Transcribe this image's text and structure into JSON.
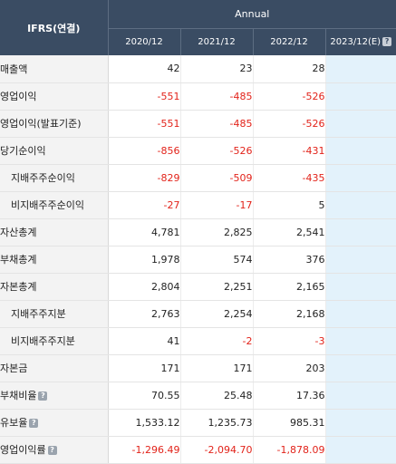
{
  "header": {
    "label": "IFRS(연결)",
    "group": "Annual",
    "years": [
      "2020/12",
      "2021/12",
      "2022/12",
      "2023/12(E)"
    ]
  },
  "rows": [
    {
      "label": "매출액",
      "indent": false,
      "help": false,
      "values": [
        "42",
        "23",
        "28",
        ""
      ]
    },
    {
      "label": "영업이익",
      "indent": false,
      "help": false,
      "values": [
        "-551",
        "-485",
        "-526",
        ""
      ]
    },
    {
      "label": "영업이익(발표기준)",
      "indent": false,
      "help": false,
      "values": [
        "-551",
        "-485",
        "-526",
        ""
      ]
    },
    {
      "label": "당기순이익",
      "indent": false,
      "help": false,
      "values": [
        "-856",
        "-526",
        "-431",
        ""
      ]
    },
    {
      "label": "지배주주순이익",
      "indent": true,
      "help": false,
      "values": [
        "-829",
        "-509",
        "-435",
        ""
      ]
    },
    {
      "label": "비지배주주순이익",
      "indent": true,
      "help": false,
      "values": [
        "-27",
        "-17",
        "5",
        ""
      ]
    },
    {
      "label": "자산총계",
      "indent": false,
      "help": false,
      "values": [
        "4,781",
        "2,825",
        "2,541",
        ""
      ]
    },
    {
      "label": "부채총계",
      "indent": false,
      "help": false,
      "values": [
        "1,978",
        "574",
        "376",
        ""
      ]
    },
    {
      "label": "자본총계",
      "indent": false,
      "help": false,
      "values": [
        "2,804",
        "2,251",
        "2,165",
        ""
      ]
    },
    {
      "label": "지배주주지분",
      "indent": true,
      "help": false,
      "values": [
        "2,763",
        "2,254",
        "2,168",
        ""
      ]
    },
    {
      "label": "비지배주주지분",
      "indent": true,
      "help": false,
      "values": [
        "41",
        "-2",
        "-3",
        ""
      ]
    },
    {
      "label": "자본금",
      "indent": false,
      "help": false,
      "values": [
        "171",
        "171",
        "203",
        ""
      ]
    },
    {
      "label": "부채비율",
      "indent": false,
      "help": true,
      "values": [
        "70.55",
        "25.48",
        "17.36",
        ""
      ]
    },
    {
      "label": "유보율",
      "indent": false,
      "help": true,
      "values": [
        "1,533.12",
        "1,235.73",
        "985.31",
        ""
      ]
    },
    {
      "label": "영업이익률",
      "indent": false,
      "help": true,
      "values": [
        "-1,296.49",
        "-2,094.70",
        "-1,878.09",
        ""
      ]
    }
  ],
  "colors": {
    "header_bg": "#3a4c63",
    "negative": "#e2231a",
    "estimate_bg": "#e3f2fb",
    "label_bg": "#f3f3f3"
  },
  "icons": {
    "help": "question-mark-icon"
  }
}
